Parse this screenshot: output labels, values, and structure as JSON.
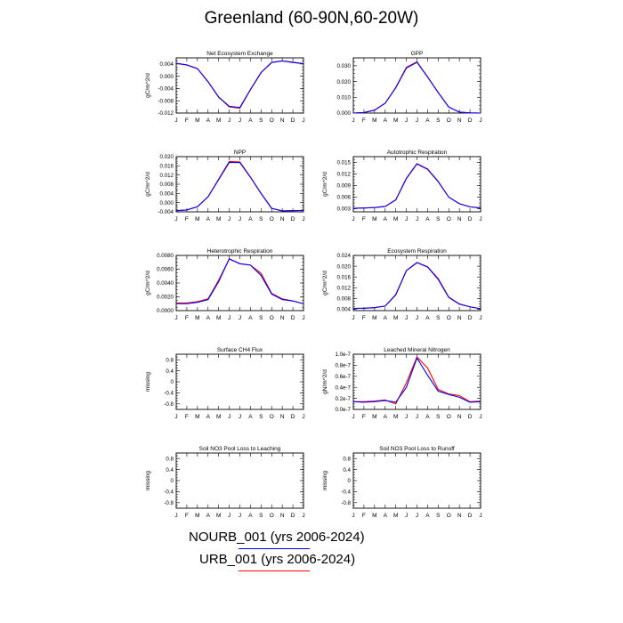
{
  "title": "Greenland (60-90N,60-20W)",
  "legend": [
    {
      "label": "NOURB_001 (yrs 2006-2024)",
      "color": "#0000ff"
    },
    {
      "label": "URB_001 (yrs 2006-2024)",
      "color": "#ff0000"
    }
  ],
  "months": [
    "J",
    "F",
    "M",
    "A",
    "M",
    "J",
    "J",
    "A",
    "S",
    "O",
    "N",
    "D",
    "J"
  ],
  "chart_data": [
    {
      "type": "line",
      "title": "Net Ecosystem Exchange",
      "ylabel": "gC/m^2/d",
      "ylim": [
        -0.012,
        0.006
      ],
      "yticks": [
        "0.004",
        "0.000",
        "-0.004",
        "-0.008",
        "-0.012"
      ],
      "ytick_values": [
        0.004,
        0.0,
        -0.004,
        -0.008,
        -0.012
      ],
      "series": [
        {
          "name": "NOURB_001",
          "values": [
            0.0042,
            0.0037,
            0.0025,
            -0.0018,
            -0.0068,
            -0.0098,
            -0.0102,
            -0.0043,
            0.0012,
            0.0045,
            0.005,
            0.0045,
            0.0041
          ]
        },
        {
          "name": "URB_001",
          "values": [
            0.0042,
            0.0037,
            0.0025,
            -0.0018,
            -0.0068,
            -0.01,
            -0.0104,
            -0.0044,
            0.0012,
            0.0045,
            0.005,
            0.0046,
            0.0041
          ]
        }
      ]
    },
    {
      "type": "line",
      "title": "GPP",
      "ylabel": "",
      "ylim": [
        0.0,
        0.035
      ],
      "yticks": [
        "0.030",
        "0.020",
        "0.010",
        "0.000"
      ],
      "ytick_values": [
        0.03,
        0.02,
        0.01,
        0.0
      ],
      "series": [
        {
          "name": "NOURB_001",
          "values": [
            0.0,
            0.0003,
            0.0018,
            0.0062,
            0.016,
            0.0285,
            0.0322,
            0.0228,
            0.013,
            0.0038,
            0.0006,
            0.0001,
            0.0
          ]
        },
        {
          "name": "URB_001",
          "values": [
            0.0,
            0.0003,
            0.0018,
            0.0062,
            0.0162,
            0.029,
            0.0325,
            0.023,
            0.0131,
            0.0038,
            0.0006,
            0.0001,
            0.0
          ]
        }
      ]
    },
    {
      "type": "line",
      "title": "NPP",
      "ylabel": "gC/m^2/d",
      "ylim": [
        -0.004,
        0.02
      ],
      "yticks": [
        "0.020",
        "0.016",
        "0.012",
        "0.008",
        "0.004",
        "0.000",
        "-0.004"
      ],
      "ytick_values": [
        0.02,
        0.016,
        0.012,
        0.008,
        0.004,
        0.0,
        -0.004
      ],
      "series": [
        {
          "name": "NOURB_001",
          "values": [
            -0.0035,
            -0.0032,
            -0.0018,
            0.0025,
            0.01,
            0.0175,
            0.0174,
            0.011,
            0.004,
            -0.0025,
            -0.0036,
            -0.0035,
            -0.0034
          ]
        },
        {
          "name": "URB_001",
          "values": [
            -0.0035,
            -0.0032,
            -0.0018,
            0.0025,
            0.0102,
            0.0179,
            0.0177,
            0.0111,
            0.004,
            -0.0025,
            -0.0036,
            -0.0035,
            -0.0034
          ]
        }
      ]
    },
    {
      "type": "line",
      "title": "Autotrophic Respiration",
      "ylabel": "gC/m^2/d",
      "ylim": [
        0.0022,
        0.0165
      ],
      "yticks": [
        "0.015",
        "0.012",
        "0.009",
        "0.006",
        "0.003"
      ],
      "ytick_values": [
        0.015,
        0.012,
        0.009,
        0.006,
        0.003
      ],
      "series": [
        {
          "name": "NOURB_001",
          "values": [
            0.0031,
            0.0032,
            0.0033,
            0.0036,
            0.0053,
            0.0108,
            0.0146,
            0.0132,
            0.01,
            0.006,
            0.0043,
            0.0035,
            0.0032
          ]
        },
        {
          "name": "URB_001",
          "values": [
            0.0031,
            0.0032,
            0.0033,
            0.0036,
            0.0053,
            0.0109,
            0.0147,
            0.0133,
            0.0101,
            0.006,
            0.0043,
            0.0035,
            0.0032
          ]
        }
      ]
    },
    {
      "type": "line",
      "title": "Heterotrophic Respiration",
      "ylabel": "gC/m^2/d",
      "ylim": [
        0.0,
        0.008
      ],
      "yticks": [
        "0.0080",
        "0.0060",
        "0.0040",
        "0.0020",
        "0.0000"
      ],
      "ytick_values": [
        0.008,
        0.006,
        0.004,
        0.002,
        0.0
      ],
      "series": [
        {
          "name": "NOURB_001",
          "values": [
            0.001,
            0.001,
            0.0012,
            0.0016,
            0.0042,
            0.0075,
            0.0068,
            0.0066,
            0.0051,
            0.0024,
            0.0016,
            0.0014,
            0.001
          ]
        },
        {
          "name": "URB_001",
          "values": [
            0.0011,
            0.0011,
            0.0013,
            0.0017,
            0.0044,
            0.0075,
            0.0068,
            0.0066,
            0.0054,
            0.0025,
            0.0017,
            0.0014,
            0.001
          ]
        }
      ]
    },
    {
      "type": "line",
      "title": "Ecosystem Respiration",
      "ylabel": "gC/m^2/d",
      "ylim": [
        0.0035,
        0.024
      ],
      "yticks": [
        "0.024",
        "0.020",
        "0.016",
        "0.012",
        "0.008",
        "0.004"
      ],
      "ytick_values": [
        0.024,
        0.02,
        0.016,
        0.012,
        0.008,
        0.004
      ],
      "series": [
        {
          "name": "NOURB_001",
          "values": [
            0.0043,
            0.0044,
            0.0046,
            0.0052,
            0.0093,
            0.0183,
            0.0213,
            0.0197,
            0.0151,
            0.0084,
            0.0059,
            0.0049,
            0.0042
          ]
        },
        {
          "name": "URB_001",
          "values": [
            0.0043,
            0.0044,
            0.0046,
            0.0052,
            0.0095,
            0.0184,
            0.0214,
            0.0198,
            0.0154,
            0.0085,
            0.006,
            0.0049,
            0.0042
          ]
        }
      ]
    },
    {
      "type": "line",
      "title": "Surface CH4 Flux",
      "ylabel": "missing",
      "ylim": [
        -1.0,
        1.0
      ],
      "yticks": [
        "0.8",
        "0.4",
        "0",
        "-0.4",
        "-0.8"
      ],
      "ytick_values": [
        0.8,
        0.4,
        0.0,
        -0.4,
        -0.8
      ],
      "series": []
    },
    {
      "type": "line",
      "title": "Leached Mineral Nitrogen",
      "ylabel": "gN/m^2/d",
      "ylim": [
        0.0,
        1.0
      ],
      "yticks": [
        "1.0e-7",
        "0.8e-7",
        "0.6e-7",
        "0.4e-7",
        "0.2e-7",
        "0.0e-7"
      ],
      "ytick_values": [
        1.0,
        0.8,
        0.6,
        0.4,
        0.2,
        0.0
      ],
      "series": [
        {
          "name": "NOURB_001",
          "values": [
            0.14,
            0.13,
            0.14,
            0.16,
            0.13,
            0.4,
            0.93,
            0.62,
            0.33,
            0.27,
            0.22,
            0.13,
            0.14
          ]
        },
        {
          "name": "URB_001",
          "values": [
            0.14,
            0.14,
            0.15,
            0.17,
            0.1,
            0.48,
            0.95,
            0.75,
            0.36,
            0.28,
            0.25,
            0.14,
            0.15
          ]
        }
      ]
    },
    {
      "type": "line",
      "title": "Soil NO3 Pool Loss to Leaching",
      "ylabel": "missing",
      "ylim": [
        -1.0,
        1.0
      ],
      "yticks": [
        "0.8",
        "0.4",
        "0",
        "-0.4",
        "-0.8"
      ],
      "ytick_values": [
        0.8,
        0.4,
        0.0,
        -0.4,
        -0.8
      ],
      "series": []
    },
    {
      "type": "line",
      "title": "Soil NO3 Pool Loss to Runoff",
      "ylabel": "missing",
      "ylim": [
        -1.0,
        1.0
      ],
      "yticks": [
        "0.8",
        "0.4",
        "0",
        "-0.4",
        "-0.8"
      ],
      "ytick_values": [
        0.8,
        0.4,
        0.0,
        -0.4,
        -0.8
      ],
      "series": []
    }
  ]
}
